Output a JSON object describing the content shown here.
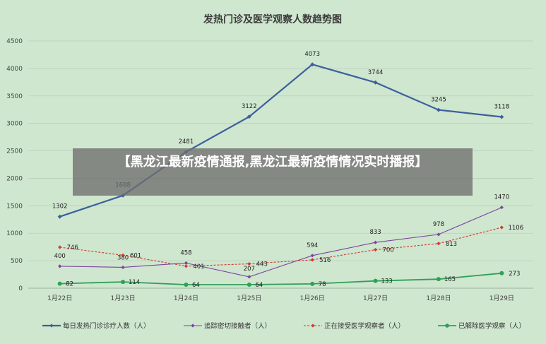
{
  "chart_data": {
    "type": "line",
    "title": "发热门诊及医学观察人数趋势图",
    "categories": [
      "1月22日",
      "1月23日",
      "1月24日",
      "1月25日",
      "1月26日",
      "1月27日",
      "1月28日",
      "1月29日"
    ],
    "ylim": [
      0,
      4500
    ],
    "yticks": [
      0,
      500,
      1000,
      1500,
      2000,
      2500,
      3000,
      3500,
      4000,
      4500
    ],
    "grid": true,
    "legend_position": "bottom",
    "series": [
      {
        "name": "每日发热门诊诊疗人数（人）",
        "values": [
          1302,
          1688,
          2481,
          3122,
          4073,
          3744,
          3245,
          3118
        ],
        "color": "#3d5f9c",
        "style": "solid-thick",
        "marker": "diamond"
      },
      {
        "name": "追踪密切接触者（人）",
        "values": [
          400,
          380,
          458,
          207,
          594,
          833,
          978,
          1470
        ],
        "color": "#7a45a0",
        "style": "solid-thin",
        "marker": "diamond"
      },
      {
        "name": "正在接受医学观察者（人）",
        "values": [
          746,
          601,
          401,
          443,
          516,
          700,
          813,
          1106
        ],
        "color": "#d13a2e",
        "style": "dashed",
        "marker": "diamond"
      },
      {
        "name": "已解除医学观察（人）",
        "values": [
          82,
          114,
          64,
          64,
          78,
          133,
          165,
          273
        ],
        "color": "#2ea058",
        "style": "solid-medium",
        "marker": "circle"
      }
    ]
  },
  "overlay": {
    "text": "【黑龙江最新疫情通报,黑龙江最新疫情情况实时播报】"
  }
}
